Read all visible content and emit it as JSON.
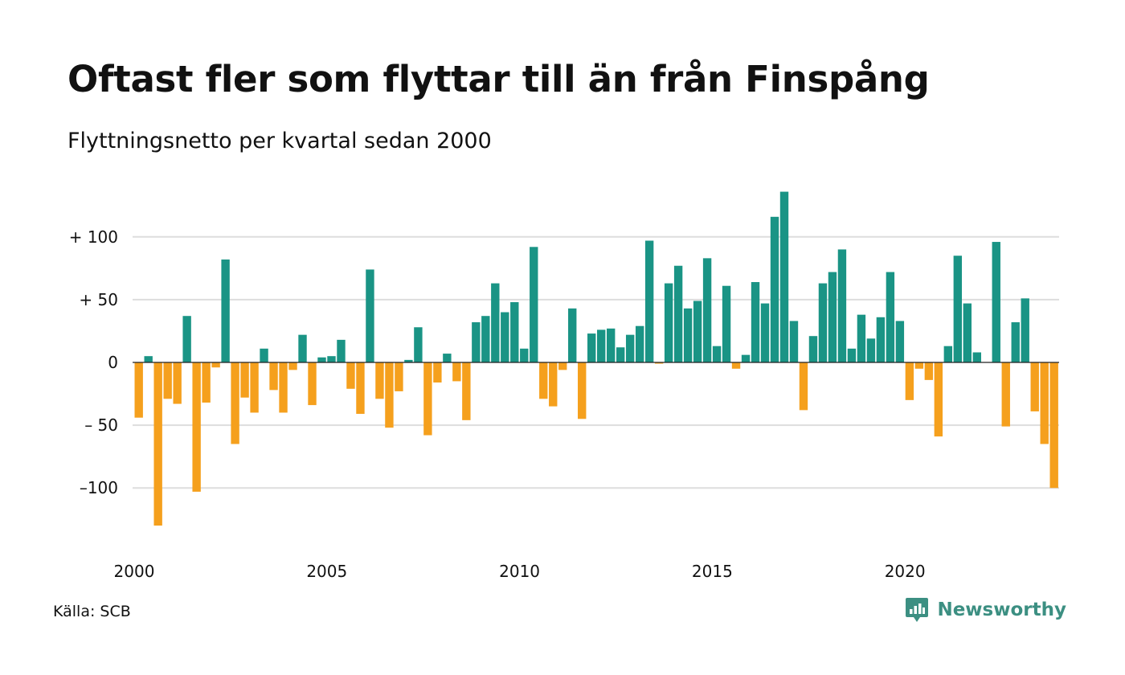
{
  "colors": {
    "positive": "#1a9485",
    "negative": "#f5a01d",
    "grid": "#dddddd",
    "logo": "#3c8f82"
  },
  "chart_data": {
    "type": "bar",
    "title": "Oftast fler som flyttar till än från Finspång",
    "subtitle": "Flyttningsnetto per kvartal sedan 2000",
    "x_start": "2000 Q1",
    "xlabel": "",
    "ylabel": "",
    "ylim": [
      -140,
      140
    ],
    "yticks": [
      {
        "value": 100,
        "label": "+ 100"
      },
      {
        "value": 50,
        "label": "+  50"
      },
      {
        "value": 0,
        "label": "0"
      },
      {
        "value": -50,
        "label": "– 50"
      },
      {
        "value": -100,
        "label": "–100"
      }
    ],
    "xticks": [
      {
        "year": 2000,
        "label": "2000"
      },
      {
        "year": 2005,
        "label": "2005"
      },
      {
        "year": 2010,
        "label": "2010"
      },
      {
        "year": 2015,
        "label": "2015"
      },
      {
        "year": 2020,
        "label": "2020"
      }
    ],
    "values": [
      -44,
      5,
      -130,
      -29,
      -33,
      37,
      -103,
      -32,
      -4,
      82,
      -65,
      -28,
      -40,
      11,
      -22,
      -40,
      -6,
      22,
      -34,
      4,
      5,
      18,
      -21,
      -41,
      74,
      -29,
      -52,
      -23,
      2,
      28,
      -58,
      -16,
      7,
      -15,
      -46,
      32,
      37,
      63,
      40,
      48,
      11,
      92,
      -29,
      -35,
      -6,
      43,
      -45,
      23,
      26,
      27,
      12,
      22,
      29,
      97,
      -1,
      63,
      77,
      43,
      49,
      83,
      13,
      61,
      -5,
      6,
      64,
      47,
      116,
      136,
      33,
      -38,
      21,
      63,
      72,
      90,
      11,
      38,
      19,
      36,
      72,
      33,
      -30,
      -5,
      -14,
      -59,
      13,
      85,
      47,
      8,
      0,
      96,
      -51,
      32,
      51,
      -39,
      -65,
      -100
    ]
  },
  "source": "Källa: SCB",
  "brand": {
    "name": "Newsworthy",
    "icon": "newsworthy-logo-icon"
  }
}
